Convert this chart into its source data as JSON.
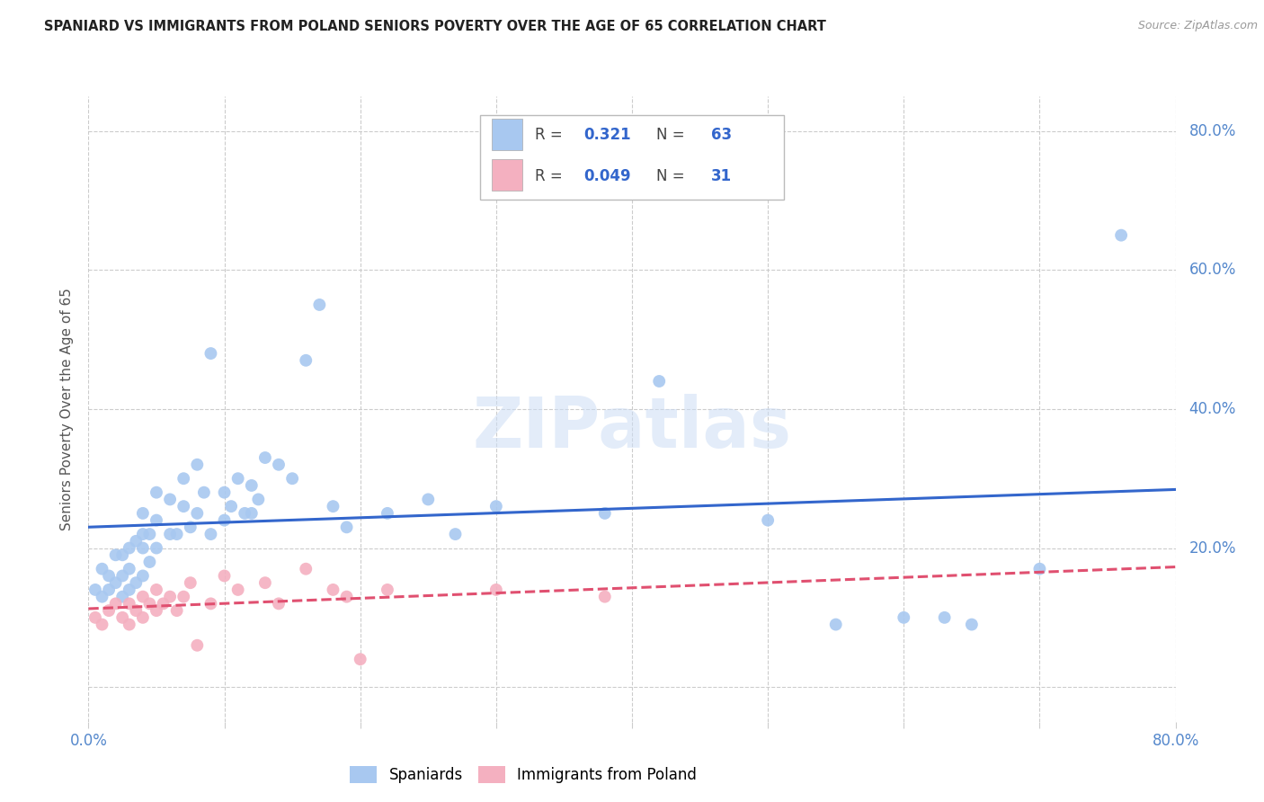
{
  "title": "SPANIARD VS IMMIGRANTS FROM POLAND SENIORS POVERTY OVER THE AGE OF 65 CORRELATION CHART",
  "source": "Source: ZipAtlas.com",
  "ylabel": "Seniors Poverty Over the Age of 65",
  "xlim": [
    0.0,
    0.8
  ],
  "ylim": [
    -0.05,
    0.85
  ],
  "xtick_positions": [
    0.0,
    0.1,
    0.2,
    0.3,
    0.4,
    0.5,
    0.6,
    0.7,
    0.8
  ],
  "ytick_positions": [
    0.0,
    0.2,
    0.4,
    0.6,
    0.8
  ],
  "legend_R1": "0.321",
  "legend_N1": "63",
  "legend_R2": "0.049",
  "legend_N2": "31",
  "spaniards_color": "#a8c8f0",
  "poland_color": "#f4b0c0",
  "spaniards_line_color": "#3366cc",
  "poland_line_color": "#e05070",
  "tick_color": "#5588cc",
  "spaniards_x": [
    0.005,
    0.01,
    0.01,
    0.015,
    0.015,
    0.02,
    0.02,
    0.025,
    0.025,
    0.025,
    0.03,
    0.03,
    0.03,
    0.035,
    0.035,
    0.04,
    0.04,
    0.04,
    0.04,
    0.045,
    0.045,
    0.05,
    0.05,
    0.05,
    0.06,
    0.06,
    0.065,
    0.07,
    0.07,
    0.075,
    0.08,
    0.08,
    0.085,
    0.09,
    0.09,
    0.1,
    0.1,
    0.105,
    0.11,
    0.115,
    0.12,
    0.12,
    0.125,
    0.13,
    0.14,
    0.15,
    0.16,
    0.17,
    0.18,
    0.19,
    0.22,
    0.25,
    0.27,
    0.3,
    0.38,
    0.42,
    0.5,
    0.55,
    0.6,
    0.63,
    0.65,
    0.7,
    0.76
  ],
  "spaniards_y": [
    0.14,
    0.13,
    0.17,
    0.14,
    0.16,
    0.15,
    0.19,
    0.13,
    0.16,
    0.19,
    0.14,
    0.17,
    0.2,
    0.15,
    0.21,
    0.16,
    0.2,
    0.22,
    0.25,
    0.18,
    0.22,
    0.2,
    0.24,
    0.28,
    0.22,
    0.27,
    0.22,
    0.26,
    0.3,
    0.23,
    0.25,
    0.32,
    0.28,
    0.48,
    0.22,
    0.24,
    0.28,
    0.26,
    0.3,
    0.25,
    0.25,
    0.29,
    0.27,
    0.33,
    0.32,
    0.3,
    0.47,
    0.55,
    0.26,
    0.23,
    0.25,
    0.27,
    0.22,
    0.26,
    0.25,
    0.44,
    0.24,
    0.09,
    0.1,
    0.1,
    0.09,
    0.17,
    0.65
  ],
  "poland_x": [
    0.005,
    0.01,
    0.015,
    0.02,
    0.025,
    0.03,
    0.03,
    0.035,
    0.04,
    0.04,
    0.045,
    0.05,
    0.05,
    0.055,
    0.06,
    0.065,
    0.07,
    0.075,
    0.08,
    0.09,
    0.1,
    0.11,
    0.13,
    0.14,
    0.16,
    0.18,
    0.19,
    0.2,
    0.22,
    0.3,
    0.38
  ],
  "poland_y": [
    0.1,
    0.09,
    0.11,
    0.12,
    0.1,
    0.09,
    0.12,
    0.11,
    0.13,
    0.1,
    0.12,
    0.11,
    0.14,
    0.12,
    0.13,
    0.11,
    0.13,
    0.15,
    0.06,
    0.12,
    0.16,
    0.14,
    0.15,
    0.12,
    0.17,
    0.14,
    0.13,
    0.04,
    0.14,
    0.14,
    0.13
  ]
}
